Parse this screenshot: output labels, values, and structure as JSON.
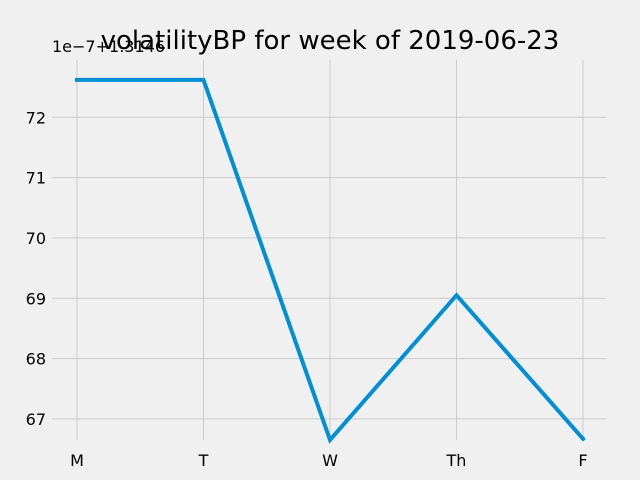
{
  "chart_data": {
    "type": "line",
    "title": "volatilityBP for week of 2019-06-23",
    "xlabel": "",
    "ylabel": "",
    "y_offset_label": "1e−7+1.3146",
    "categories": [
      "M",
      "T",
      "W",
      "Th",
      "F"
    ],
    "y_ticks": [
      67,
      68,
      69,
      70,
      71,
      72
    ],
    "y_tick_labels": [
      "67",
      "68",
      "69",
      "70",
      "71",
      "72"
    ],
    "ylim": [
      66.65,
      72.95
    ],
    "grid": true,
    "legend": "none",
    "series": [
      {
        "values": [
          72.62,
          72.62,
          66.65,
          69.05,
          66.67
        ],
        "color": "#008fd5"
      }
    ]
  }
}
